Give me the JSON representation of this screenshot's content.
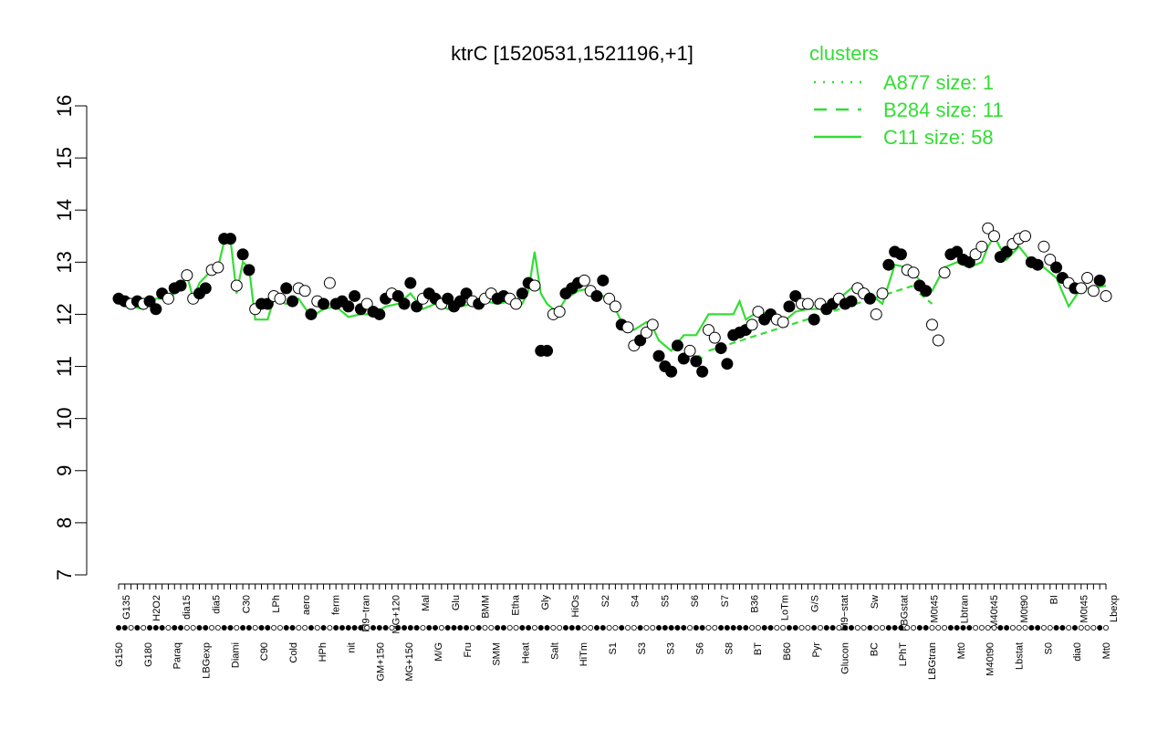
{
  "chart_data": {
    "type": "line",
    "title": "ktrC [1520531,1521196,+1]",
    "xlabel": "",
    "ylabel": "",
    "ylim": [
      7,
      16
    ],
    "yticks": [
      7,
      8,
      9,
      10,
      11,
      12,
      13,
      14,
      15,
      16
    ],
    "legend": {
      "title": "clusters",
      "placement": "top-right",
      "entries": [
        {
          "label": "A877 size: 1",
          "style": "dotted"
        },
        {
          "label": "B284 size: 11",
          "style": "dashed"
        },
        {
          "label": "C11 size: 58",
          "style": "solid"
        }
      ]
    },
    "line_color": "#33dd33",
    "categories_top": [
      "G135",
      "H2O2",
      "dia15",
      "dia5",
      "C30",
      "LPh",
      "aero",
      "ferm",
      "M9−tran",
      "MG+120",
      "Mal",
      "Glu",
      "BMM",
      "Etha",
      "Gly",
      "HiOs",
      "S2",
      "S4",
      "S5",
      "S6",
      "S7",
      "B36",
      "LoTm",
      "G/S",
      "M9−stat",
      "Sw",
      "LBGstat",
      "M0t45",
      "Lbtran",
      "M40t45",
      "M0t90",
      "BI",
      "M0t45",
      "Lbexp"
    ],
    "categories_bottom": [
      "G150",
      "G180",
      "Paraq",
      "LBGexp",
      "Diami",
      "C90",
      "Cold",
      "HPh",
      "nit",
      "GM+150",
      "MG+150",
      "M/G",
      "Fru",
      "SMM",
      "Heat",
      "Salt",
      "HiTm",
      "S1",
      "S3",
      "S3",
      "S6",
      "S8",
      "BT",
      "B60",
      "Pyr",
      "Glucon",
      "BC",
      "LPhT",
      "LBGtran",
      "Mt0",
      "M40t90",
      "Lbstat",
      "S0",
      "dia0",
      "Mt0"
    ],
    "points": [
      {
        "x": 1,
        "y": 12.3,
        "filled": true
      },
      {
        "x": 2,
        "y": 12.25,
        "filled": true
      },
      {
        "x": 3,
        "y": 12.2,
        "filled": false
      },
      {
        "x": 4,
        "y": 12.25,
        "filled": true
      },
      {
        "x": 5,
        "y": 12.2,
        "filled": false
      },
      {
        "x": 6,
        "y": 12.25,
        "filled": true
      },
      {
        "x": 7,
        "y": 12.1,
        "filled": true
      },
      {
        "x": 8,
        "y": 12.4,
        "filled": true
      },
      {
        "x": 9,
        "y": 12.3,
        "filled": false
      },
      {
        "x": 10,
        "y": 12.5,
        "filled": true
      },
      {
        "x": 11,
        "y": 12.55,
        "filled": true
      },
      {
        "x": 12,
        "y": 12.75,
        "filled": false
      },
      {
        "x": 13,
        "y": 12.3,
        "filled": false
      },
      {
        "x": 14,
        "y": 12.4,
        "filled": true
      },
      {
        "x": 15,
        "y": 12.5,
        "filled": true
      },
      {
        "x": 16,
        "y": 12.85,
        "filled": false
      },
      {
        "x": 17,
        "y": 12.9,
        "filled": false
      },
      {
        "x": 18,
        "y": 13.45,
        "filled": true
      },
      {
        "x": 19,
        "y": 13.45,
        "filled": true
      },
      {
        "x": 20,
        "y": 12.55,
        "filled": false
      },
      {
        "x": 21,
        "y": 13.15,
        "filled": true
      },
      {
        "x": 22,
        "y": 12.85,
        "filled": true
      },
      {
        "x": 23,
        "y": 12.1,
        "filled": false
      },
      {
        "x": 24,
        "y": 12.2,
        "filled": true
      },
      {
        "x": 25,
        "y": 12.2,
        "filled": true
      },
      {
        "x": 26,
        "y": 12.35,
        "filled": false
      },
      {
        "x": 27,
        "y": 12.3,
        "filled": false
      },
      {
        "x": 28,
        "y": 12.5,
        "filled": true
      },
      {
        "x": 29,
        "y": 12.25,
        "filled": true
      },
      {
        "x": 30,
        "y": 12.5,
        "filled": false
      },
      {
        "x": 31,
        "y": 12.45,
        "filled": false
      },
      {
        "x": 32,
        "y": 12.0,
        "filled": true
      },
      {
        "x": 33,
        "y": 12.25,
        "filled": false
      },
      {
        "x": 34,
        "y": 12.2,
        "filled": true
      },
      {
        "x": 35,
        "y": 12.6,
        "filled": false
      },
      {
        "x": 36,
        "y": 12.2,
        "filled": true
      },
      {
        "x": 37,
        "y": 12.25,
        "filled": true
      },
      {
        "x": 38,
        "y": 12.15,
        "filled": true
      },
      {
        "x": 39,
        "y": 12.35,
        "filled": true
      },
      {
        "x": 40,
        "y": 12.1,
        "filled": true
      },
      {
        "x": 41,
        "y": 12.2,
        "filled": false
      },
      {
        "x": 42,
        "y": 12.05,
        "filled": true
      },
      {
        "x": 43,
        "y": 12.0,
        "filled": true
      },
      {
        "x": 44,
        "y": 12.3,
        "filled": true
      },
      {
        "x": 45,
        "y": 12.4,
        "filled": false
      },
      {
        "x": 46,
        "y": 12.35,
        "filled": true
      },
      {
        "x": 47,
        "y": 12.2,
        "filled": true
      },
      {
        "x": 48,
        "y": 12.6,
        "filled": true
      },
      {
        "x": 49,
        "y": 12.15,
        "filled": true
      },
      {
        "x": 50,
        "y": 12.3,
        "filled": false
      },
      {
        "x": 51,
        "y": 12.4,
        "filled": true
      },
      {
        "x": 52,
        "y": 12.3,
        "filled": true
      },
      {
        "x": 53,
        "y": 12.2,
        "filled": false
      },
      {
        "x": 54,
        "y": 12.3,
        "filled": true
      },
      {
        "x": 55,
        "y": 12.15,
        "filled": true
      },
      {
        "x": 56,
        "y": 12.25,
        "filled": true
      },
      {
        "x": 57,
        "y": 12.4,
        "filled": true
      },
      {
        "x": 58,
        "y": 12.25,
        "filled": false
      },
      {
        "x": 59,
        "y": 12.2,
        "filled": true
      },
      {
        "x": 60,
        "y": 12.3,
        "filled": false
      },
      {
        "x": 61,
        "y": 12.4,
        "filled": false
      },
      {
        "x": 62,
        "y": 12.3,
        "filled": true
      },
      {
        "x": 63,
        "y": 12.35,
        "filled": true
      },
      {
        "x": 64,
        "y": 12.3,
        "filled": false
      },
      {
        "x": 65,
        "y": 12.2,
        "filled": false
      },
      {
        "x": 66,
        "y": 12.4,
        "filled": true
      },
      {
        "x": 67,
        "y": 12.6,
        "filled": true
      },
      {
        "x": 68,
        "y": 12.55,
        "filled": false
      },
      {
        "x": 69,
        "y": 11.3,
        "filled": true
      },
      {
        "x": 70,
        "y": 11.3,
        "filled": true
      },
      {
        "x": 71,
        "y": 12.0,
        "filled": false
      },
      {
        "x": 72,
        "y": 12.05,
        "filled": false
      },
      {
        "x": 73,
        "y": 12.4,
        "filled": true
      },
      {
        "x": 74,
        "y": 12.5,
        "filled": true
      },
      {
        "x": 75,
        "y": 12.6,
        "filled": true
      },
      {
        "x": 76,
        "y": 12.65,
        "filled": false
      },
      {
        "x": 77,
        "y": 12.45,
        "filled": false
      },
      {
        "x": 78,
        "y": 12.35,
        "filled": true
      },
      {
        "x": 79,
        "y": 12.65,
        "filled": true
      },
      {
        "x": 80,
        "y": 12.3,
        "filled": false
      },
      {
        "x": 81,
        "y": 12.15,
        "filled": false
      },
      {
        "x": 82,
        "y": 11.8,
        "filled": true
      },
      {
        "x": 83,
        "y": 11.75,
        "filled": false
      },
      {
        "x": 84,
        "y": 11.4,
        "filled": false
      },
      {
        "x": 85,
        "y": 11.5,
        "filled": true
      },
      {
        "x": 86,
        "y": 11.65,
        "filled": false
      },
      {
        "x": 87,
        "y": 11.8,
        "filled": false
      },
      {
        "x": 88,
        "y": 11.2,
        "filled": true
      },
      {
        "x": 89,
        "y": 11.0,
        "filled": true
      },
      {
        "x": 90,
        "y": 10.9,
        "filled": true
      },
      {
        "x": 91,
        "y": 11.4,
        "filled": true
      },
      {
        "x": 92,
        "y": 11.15,
        "filled": true
      },
      {
        "x": 93,
        "y": 11.3,
        "filled": false
      },
      {
        "x": 94,
        "y": 11.1,
        "filled": true
      },
      {
        "x": 95,
        "y": 10.9,
        "filled": true
      },
      {
        "x": 96,
        "y": 11.7,
        "filled": false
      },
      {
        "x": 97,
        "y": 11.55,
        "filled": false
      },
      {
        "x": 98,
        "y": 11.35,
        "filled": true
      },
      {
        "x": 99,
        "y": 11.05,
        "filled": true
      },
      {
        "x": 100,
        "y": 11.6,
        "filled": true
      },
      {
        "x": 101,
        "y": 11.65,
        "filled": true
      },
      {
        "x": 102,
        "y": 11.7,
        "filled": true
      },
      {
        "x": 103,
        "y": 11.8,
        "filled": false
      },
      {
        "x": 104,
        "y": 12.05,
        "filled": false
      },
      {
        "x": 105,
        "y": 11.9,
        "filled": true
      },
      {
        "x": 106,
        "y": 12.0,
        "filled": true
      },
      {
        "x": 107,
        "y": 11.9,
        "filled": false
      },
      {
        "x": 108,
        "y": 11.85,
        "filled": false
      },
      {
        "x": 109,
        "y": 12.15,
        "filled": true
      },
      {
        "x": 110,
        "y": 12.35,
        "filled": true
      },
      {
        "x": 111,
        "y": 12.2,
        "filled": false
      },
      {
        "x": 112,
        "y": 12.2,
        "filled": false
      },
      {
        "x": 113,
        "y": 11.9,
        "filled": true
      },
      {
        "x": 114,
        "y": 12.2,
        "filled": false
      },
      {
        "x": 115,
        "y": 12.1,
        "filled": true
      },
      {
        "x": 116,
        "y": 12.2,
        "filled": true
      },
      {
        "x": 117,
        "y": 12.3,
        "filled": false
      },
      {
        "x": 118,
        "y": 12.2,
        "filled": true
      },
      {
        "x": 119,
        "y": 12.25,
        "filled": true
      },
      {
        "x": 120,
        "y": 12.5,
        "filled": false
      },
      {
        "x": 121,
        "y": 12.4,
        "filled": false
      },
      {
        "x": 122,
        "y": 12.3,
        "filled": true
      },
      {
        "x": 123,
        "y": 12.0,
        "filled": false
      },
      {
        "x": 124,
        "y": 12.4,
        "filled": false
      },
      {
        "x": 125,
        "y": 12.95,
        "filled": true
      },
      {
        "x": 126,
        "y": 13.2,
        "filled": true
      },
      {
        "x": 127,
        "y": 13.15,
        "filled": true
      },
      {
        "x": 128,
        "y": 12.85,
        "filled": false
      },
      {
        "x": 129,
        "y": 12.8,
        "filled": false
      },
      {
        "x": 130,
        "y": 12.55,
        "filled": true
      },
      {
        "x": 131,
        "y": 12.45,
        "filled": true
      },
      {
        "x": 132,
        "y": 11.8,
        "filled": false
      },
      {
        "x": 133,
        "y": 11.5,
        "filled": false
      },
      {
        "x": 134,
        "y": 12.8,
        "filled": false
      },
      {
        "x": 135,
        "y": 13.15,
        "filled": true
      },
      {
        "x": 136,
        "y": 13.2,
        "filled": true
      },
      {
        "x": 137,
        "y": 13.05,
        "filled": true
      },
      {
        "x": 138,
        "y": 13.0,
        "filled": true
      },
      {
        "x": 139,
        "y": 13.15,
        "filled": false
      },
      {
        "x": 140,
        "y": 13.3,
        "filled": false
      },
      {
        "x": 141,
        "y": 13.65,
        "filled": false
      },
      {
        "x": 142,
        "y": 13.5,
        "filled": false
      },
      {
        "x": 143,
        "y": 13.1,
        "filled": true
      },
      {
        "x": 144,
        "y": 13.2,
        "filled": true
      },
      {
        "x": 145,
        "y": 13.35,
        "filled": false
      },
      {
        "x": 146,
        "y": 13.45,
        "filled": false
      },
      {
        "x": 147,
        "y": 13.5,
        "filled": false
      },
      {
        "x": 148,
        "y": 13.0,
        "filled": true
      },
      {
        "x": 149,
        "y": 12.95,
        "filled": true
      },
      {
        "x": 150,
        "y": 13.3,
        "filled": false
      },
      {
        "x": 151,
        "y": 13.05,
        "filled": false
      },
      {
        "x": 152,
        "y": 12.9,
        "filled": true
      },
      {
        "x": 153,
        "y": 12.7,
        "filled": true
      },
      {
        "x": 154,
        "y": 12.6,
        "filled": false
      },
      {
        "x": 155,
        "y": 12.5,
        "filled": true
      },
      {
        "x": 156,
        "y": 12.5,
        "filled": false
      },
      {
        "x": 157,
        "y": 12.7,
        "filled": false
      },
      {
        "x": 158,
        "y": 12.45,
        "filled": false
      },
      {
        "x": 159,
        "y": 12.65,
        "filled": true
      },
      {
        "x": 160,
        "y": 12.35,
        "filled": false
      }
    ],
    "line": [
      [
        1,
        12.2
      ],
      [
        3,
        12.15
      ],
      [
        5,
        12.1
      ],
      [
        7,
        12.3
      ],
      [
        9,
        12.3
      ],
      [
        11,
        12.5
      ],
      [
        12,
        12.75
      ],
      [
        13,
        12.3
      ],
      [
        14,
        12.6
      ],
      [
        16,
        12.85
      ],
      [
        17,
        12.9
      ],
      [
        18,
        13.4
      ],
      [
        19,
        13.45
      ],
      [
        20,
        12.4
      ],
      [
        21,
        13.0
      ],
      [
        22,
        12.9
      ],
      [
        23,
        11.9
      ],
      [
        25,
        11.9
      ],
      [
        26,
        12.3
      ],
      [
        28,
        12.2
      ],
      [
        30,
        12.3
      ],
      [
        32,
        11.95
      ],
      [
        34,
        12.1
      ],
      [
        36,
        12.15
      ],
      [
        38,
        11.95
      ],
      [
        40,
        12.0
      ],
      [
        42,
        12.0
      ],
      [
        44,
        12.15
      ],
      [
        46,
        12.2
      ],
      [
        48,
        12.4
      ],
      [
        50,
        12.1
      ],
      [
        52,
        12.2
      ],
      [
        54,
        12.1
      ],
      [
        56,
        12.15
      ],
      [
        58,
        12.2
      ],
      [
        60,
        12.25
      ],
      [
        62,
        12.2
      ],
      [
        64,
        12.25
      ],
      [
        66,
        12.2
      ],
      [
        67,
        12.45
      ],
      [
        68,
        13.2
      ],
      [
        69,
        12.4
      ],
      [
        70,
        12.2
      ],
      [
        71,
        12.1
      ],
      [
        72,
        12.1
      ],
      [
        73,
        12.3
      ],
      [
        75,
        12.45
      ],
      [
        77,
        12.5
      ],
      [
        79,
        12.35
      ],
      [
        81,
        12.1
      ],
      [
        82,
        11.85
      ],
      [
        84,
        11.7
      ],
      [
        86,
        11.85
      ],
      [
        87,
        11.75
      ],
      [
        88,
        11.5
      ],
      [
        90,
        11.3
      ],
      [
        92,
        11.6
      ],
      [
        94,
        11.6
      ],
      [
        95,
        11.8
      ],
      [
        96,
        12.0
      ],
      [
        98,
        12.0
      ],
      [
        100,
        12.0
      ],
      [
        101,
        12.25
      ],
      [
        102,
        11.9
      ],
      [
        104,
        12.05
      ],
      [
        106,
        12.0
      ],
      [
        108,
        11.85
      ],
      [
        110,
        12.05
      ],
      [
        112,
        12.1
      ],
      [
        114,
        12.1
      ],
      [
        116,
        12.2
      ],
      [
        118,
        12.4
      ],
      [
        120,
        12.6
      ],
      [
        122,
        12.4
      ],
      [
        124,
        12.2
      ],
      [
        126,
        12.95
      ],
      [
        128,
        12.9
      ],
      [
        129,
        12.8
      ],
      [
        131,
        12.5
      ],
      [
        132,
        12.45
      ],
      [
        134,
        12.9
      ],
      [
        136,
        13.0
      ],
      [
        138,
        12.9
      ],
      [
        140,
        13.0
      ],
      [
        141,
        13.3
      ],
      [
        142,
        13.5
      ],
      [
        144,
        13.05
      ],
      [
        146,
        13.3
      ],
      [
        148,
        13.0
      ],
      [
        150,
        12.9
      ],
      [
        152,
        12.7
      ],
      [
        154,
        12.15
      ],
      [
        156,
        12.5
      ],
      [
        158,
        12.5
      ],
      [
        160,
        12.55
      ]
    ],
    "dashed_line": [
      [
        71,
        12.1
      ],
      [
        72,
        12.05
      ],
      [
        93,
        11.35
      ],
      [
        95,
        11.15
      ],
      [
        96,
        11.3
      ],
      [
        129,
        12.55
      ],
      [
        130,
        12.4
      ],
      [
        132,
        12.2
      ],
      [
        133,
        11.75
      ]
    ]
  }
}
